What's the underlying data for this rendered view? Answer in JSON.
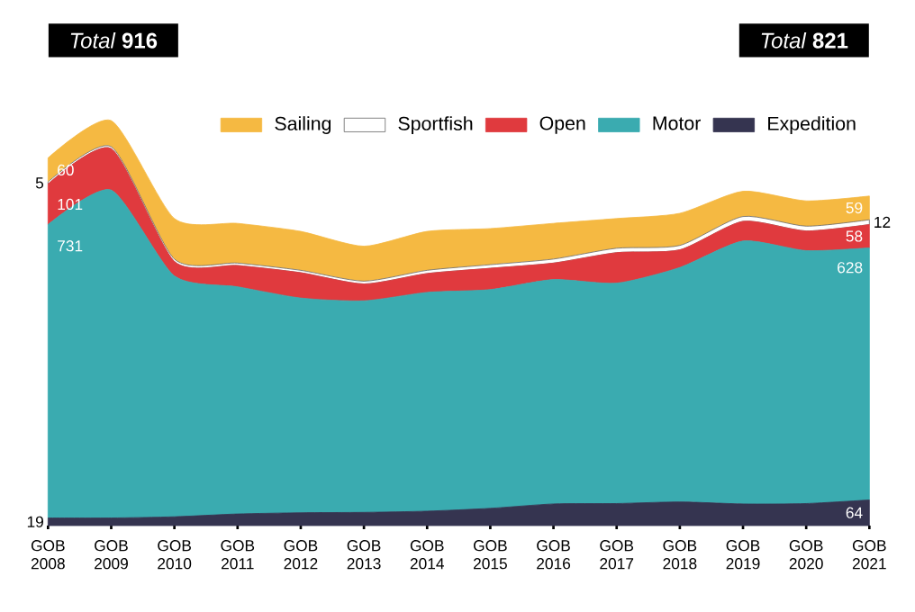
{
  "chart_data": {
    "type": "area",
    "stacked": true,
    "categories": [
      "GOB 2008",
      "GOB 2009",
      "GOB 2010",
      "GOB 2011",
      "GOB 2012",
      "GOB 2013",
      "GOB 2014",
      "GOB 2015",
      "GOB 2016",
      "GOB 2017",
      "GOB 2018",
      "GOB 2019",
      "GOB 2020",
      "GOB 2021"
    ],
    "series": [
      {
        "name": "Expedition",
        "color": "#353450",
        "values": [
          19,
          19,
          22,
          29,
          32,
          33,
          36,
          43,
          54,
          55,
          59,
          54,
          55,
          64
        ],
        "value_labels": [
          "19",
          null,
          null,
          null,
          null,
          null,
          null,
          null,
          null,
          null,
          null,
          null,
          null,
          "64"
        ]
      },
      {
        "name": "Motor",
        "color": "#3aabb0",
        "values": [
          731,
          817,
          600,
          566,
          535,
          527,
          545,
          545,
          559,
          549,
          584,
          655,
          630,
          628
        ],
        "value_labels": [
          "731",
          null,
          null,
          null,
          null,
          null,
          null,
          null,
          null,
          null,
          null,
          null,
          null,
          "628"
        ]
      },
      {
        "name": "Open",
        "color": "#e03a3e",
        "values": [
          101,
          103,
          36,
          53,
          63,
          42,
          47,
          53,
          41,
          76,
          44,
          49,
          49,
          58
        ],
        "value_labels": [
          "101",
          null,
          null,
          null,
          null,
          null,
          null,
          null,
          null,
          null,
          null,
          null,
          null,
          "58"
        ]
      },
      {
        "name": "Sportfish",
        "color": "#ffffff",
        "values": [
          5,
          5,
          6,
          6,
          6,
          7,
          8,
          9,
          10,
          11,
          11,
          12,
          12,
          12
        ],
        "value_labels": [
          "5",
          null,
          null,
          null,
          null,
          null,
          null,
          null,
          null,
          null,
          null,
          null,
          null,
          "12"
        ]
      },
      {
        "name": "Sailing",
        "color": "#f5b942",
        "values": [
          60,
          65,
          101,
          99,
          97,
          87,
          97,
          90,
          89,
          74,
          80,
          63,
          63,
          59
        ],
        "value_labels": [
          "60",
          null,
          null,
          null,
          null,
          null,
          null,
          null,
          null,
          null,
          null,
          null,
          null,
          "59"
        ]
      }
    ],
    "tick_labels": "x",
    "legend": "top",
    "annotations": [
      "*Total* **916**",
      "*Total* **821**"
    ]
  }
}
